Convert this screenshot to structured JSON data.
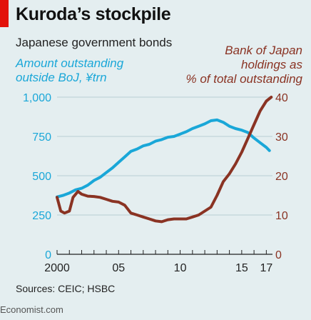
{
  "brand": {
    "accent": "#e3120b",
    "footer": "Economist.com"
  },
  "header": {
    "title": "Kuroda’s stockpile",
    "subtitle": "Japanese government bonds"
  },
  "chart_data": {
    "type": "line",
    "left_axis_label": [
      "Amount outstanding",
      "outside BoJ, ¥trn"
    ],
    "right_axis_label": [
      "Bank of Japan",
      "holdings as",
      "% of total outstanding"
    ],
    "x_ticks": [
      "2000",
      "05",
      "10",
      "15",
      "17"
    ],
    "y_left_ticks": [
      "0",
      "250",
      "500",
      "750",
      "1,000"
    ],
    "y_right_ticks": [
      "0",
      "10",
      "20",
      "30",
      "40"
    ],
    "ylim_left": [
      0,
      1000
    ],
    "ylim_right": [
      0,
      40
    ],
    "xlim": [
      2000,
      2017.5
    ],
    "grid": true,
    "series": [
      {
        "name": "Amount outstanding outside BoJ, ¥trn",
        "axis": "left",
        "color": "#1aa7d8",
        "x": [
          2000.0,
          2000.5,
          2001.0,
          2001.5,
          2002.0,
          2002.5,
          2003.0,
          2003.5,
          2004.0,
          2004.5,
          2005.0,
          2005.5,
          2006.0,
          2006.5,
          2007.0,
          2007.5,
          2008.0,
          2008.5,
          2009.0,
          2009.5,
          2010.0,
          2010.5,
          2011.0,
          2011.5,
          2012.0,
          2012.5,
          2013.0,
          2013.5,
          2014.0,
          2014.5,
          2015.0,
          2015.5,
          2016.0,
          2016.5,
          2017.0,
          2017.25
        ],
        "values": [
          365,
          375,
          390,
          410,
          420,
          440,
          470,
          490,
          520,
          550,
          585,
          620,
          655,
          670,
          690,
          700,
          720,
          730,
          745,
          750,
          765,
          780,
          800,
          815,
          830,
          850,
          855,
          840,
          815,
          800,
          790,
          775,
          740,
          710,
          680,
          660
        ]
      },
      {
        "name": "Bank of Japan holdings as % of total outstanding",
        "axis": "right",
        "color": "#8a3323",
        "x": [
          2000.0,
          2000.3,
          2000.6,
          2001.0,
          2001.3,
          2001.7,
          2002.0,
          2002.5,
          2003.0,
          2003.5,
          2004.0,
          2004.5,
          2005.0,
          2005.5,
          2006.0,
          2006.5,
          2007.0,
          2007.5,
          2008.0,
          2008.5,
          2009.0,
          2009.5,
          2010.0,
          2010.5,
          2011.0,
          2011.5,
          2012.0,
          2012.5,
          2013.0,
          2013.5,
          2014.0,
          2014.5,
          2015.0,
          2015.5,
          2016.0,
          2016.5,
          2017.0,
          2017.4
        ],
        "values": [
          14.5,
          11,
          10.5,
          11,
          14.5,
          16,
          15.3,
          14.8,
          14.7,
          14.5,
          14,
          13.5,
          13.3,
          12.5,
          10.5,
          10,
          9.5,
          9,
          8.5,
          8.3,
          8.8,
          9,
          9,
          9,
          9.5,
          10,
          11,
          12,
          15,
          18.5,
          20.5,
          23,
          26,
          29.5,
          33,
          36.5,
          39,
          40
        ]
      }
    ]
  },
  "source": "Sources: CEIC; HSBC"
}
